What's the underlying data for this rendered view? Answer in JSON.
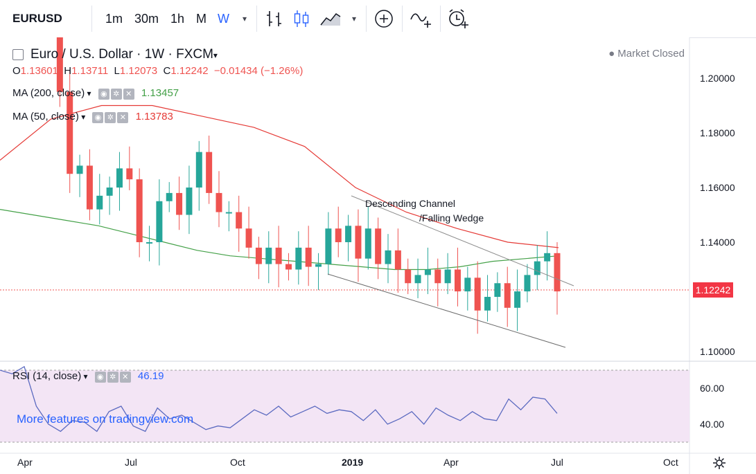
{
  "toolbar": {
    "symbol": "EURUSD",
    "intervals": [
      "1m",
      "30m",
      "1h",
      "M",
      "W"
    ],
    "active_interval": "W",
    "icons": [
      "bar-style-icon",
      "candles-icon",
      "area-icon",
      "add-indicator-icon",
      "compare-icon",
      "alert-icon"
    ]
  },
  "legend": {
    "title": "Euro / U.S. Dollar · 1W · FXCM",
    "ohlc": {
      "o_label": "O",
      "o": "1.13601",
      "h_label": "H",
      "h": "1.13711",
      "l_label": "L",
      "l": "1.12073",
      "c_label": "C",
      "c": "1.12242",
      "change": "−0.01434 (−1.26%)"
    },
    "ma200": {
      "label": "MA (200, close)",
      "value": "1.13457"
    },
    "ma50": {
      "label": "MA (50, close)",
      "value": "1.13783"
    },
    "status": "● Market Closed"
  },
  "price_axis": [
    "1.20000",
    "1.18000",
    "1.16000",
    "1.14000",
    "1.10000"
  ],
  "last_price": "1.12242",
  "rsi": {
    "label": "RSI (14, close)",
    "value": "46.19",
    "axis": [
      "60.00",
      "40.00"
    ]
  },
  "time_axis": [
    "Apr",
    "Jul",
    "Oct",
    "2019",
    "Apr",
    "Jul",
    "Oct"
  ],
  "annotation": {
    "line1": "Descending Channel",
    "line2": "/Falling Wedge"
  },
  "watermark": "More features on tradingview.com",
  "colors": {
    "up": "#26a69a",
    "down": "#ef5350",
    "ma200": "#43a047",
    "ma50": "#e53935",
    "rsi": "#5b6ac0",
    "rsi_bg": "#f3e5f5"
  },
  "chart_data": {
    "type": "candlestick",
    "weekly_closes": [
      1.232,
      1.195,
      1.165,
      1.168,
      1.152,
      1.157,
      1.16,
      1.167,
      1.163,
      1.14,
      1.14,
      1.155,
      1.158,
      1.15,
      1.16,
      1.173,
      1.158,
      1.151,
      1.151,
      1.145,
      1.138,
      1.132,
      1.138,
      1.132,
      1.13,
      1.138,
      1.131,
      1.132,
      1.145,
      1.14,
      1.146,
      1.134,
      1.145,
      1.132,
      1.137,
      1.13,
      1.125,
      1.128,
      1.13,
      1.125,
      1.13,
      1.122,
      1.127,
      1.115,
      1.12,
      1.125,
      1.116,
      1.122,
      1.128,
      1.133,
      1.136,
      1.122
    ],
    "ma200": [
      1.152,
      1.15,
      1.148,
      1.146,
      1.143,
      1.14,
      1.137,
      1.135,
      1.134,
      1.133,
      1.132,
      1.131,
      1.13,
      1.13,
      1.131,
      1.133,
      1.134,
      1.135
    ],
    "ma50": [
      1.17,
      1.185,
      1.19,
      1.19,
      1.186,
      1.182,
      1.175,
      1.16,
      1.151,
      1.145,
      1.14,
      1.138
    ],
    "rsi": [
      70,
      68,
      72,
      50,
      40,
      36,
      42,
      41,
      36,
      47,
      50,
      39,
      36,
      49,
      43,
      45,
      41,
      37,
      39,
      38,
      43,
      48,
      45,
      50,
      44,
      47,
      50,
      46,
      48,
      47,
      42,
      48,
      40,
      43,
      47,
      40,
      49,
      45,
      42,
      47,
      43,
      42,
      54,
      48,
      55,
      54,
      46
    ]
  }
}
